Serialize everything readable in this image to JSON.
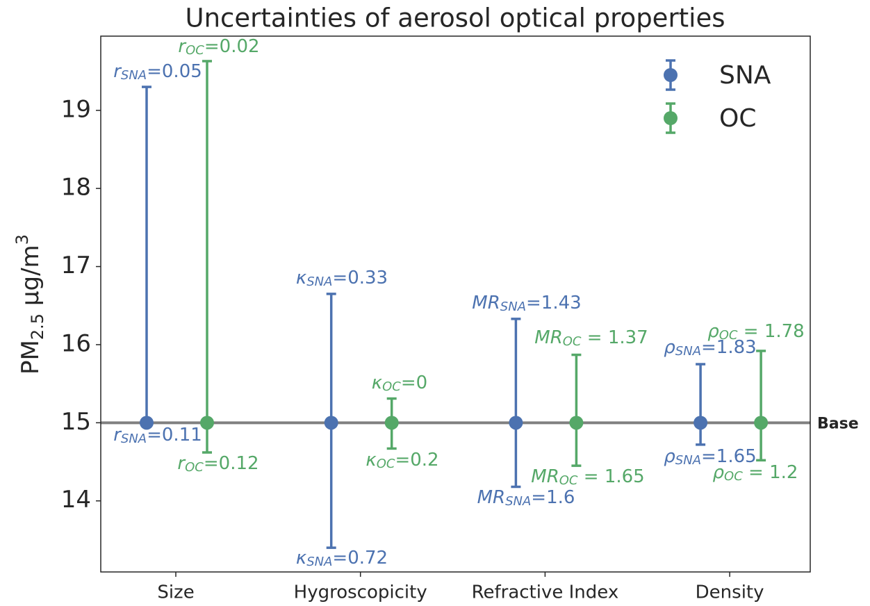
{
  "chart_data": {
    "type": "errorbar",
    "title": "Uncertainties of aerosol optical properties",
    "ylabel": {
      "main": "PM",
      "sub": "2.5",
      "unit": " μg/m",
      "sup": "3"
    },
    "categories": [
      "Size",
      "Hygroscopicity",
      "Refractive Index",
      "Density"
    ],
    "ylim": [
      13.09,
      19.95
    ],
    "yticks": [
      14,
      15,
      16,
      17,
      18,
      19
    ],
    "base_line": {
      "value": 15,
      "label": "Base",
      "color": "#808080"
    },
    "legend": "upper right",
    "series": [
      {
        "name": "SNA",
        "color": "#4c72b0",
        "values": [
          15,
          15,
          15,
          15
        ],
        "lower": [
          15,
          13.4,
          14.18,
          14.72
        ],
        "upper": [
          19.3,
          16.65,
          16.33,
          15.75
        ],
        "upper_labels": [
          {
            "symbol": "r",
            "sub": "SNA",
            "rest": "=0.05"
          },
          {
            "symbol": "κ",
            "sub": "SNA",
            "rest": "=0.33"
          },
          {
            "symbol": "MR",
            "sub": "SNA",
            "rest": "=1.43"
          },
          {
            "symbol": "ρ",
            "sub": "SNA",
            "rest": "=1.83"
          }
        ],
        "lower_labels": [
          {
            "symbol": "r",
            "sub": "SNA",
            "rest": "=0.11"
          },
          {
            "symbol": "κ",
            "sub": "SNA",
            "rest": "=0.72"
          },
          {
            "symbol": "MR",
            "sub": "SNA",
            "rest": "=1.6"
          },
          {
            "symbol": "ρ",
            "sub": "SNA",
            "rest": "=1.65"
          }
        ]
      },
      {
        "name": "OC",
        "color": "#55a868",
        "values": [
          15,
          15,
          15,
          15
        ],
        "lower": [
          14.62,
          14.67,
          14.45,
          14.52
        ],
        "upper": [
          19.63,
          15.31,
          15.87,
          15.92
        ],
        "upper_labels": [
          {
            "symbol": "r",
            "sub": "OC",
            "rest": "=0.02"
          },
          {
            "symbol": "κ",
            "sub": "OC",
            "rest": "=0"
          },
          {
            "symbol": "MR",
            "sub": "OC",
            "rest": " = 1.37"
          },
          {
            "symbol": "ρ",
            "sub": "OC",
            "rest": " = 1.78"
          }
        ],
        "lower_labels": [
          {
            "symbol": "r",
            "sub": "OC",
            "rest": "=0.12"
          },
          {
            "symbol": "κ",
            "sub": "OC",
            "rest": "=0.2"
          },
          {
            "symbol": "MR",
            "sub": "OC",
            "rest": " = 1.65"
          },
          {
            "symbol": "ρ",
            "sub": "OC",
            "rest": " = 1.2"
          }
        ]
      }
    ]
  }
}
